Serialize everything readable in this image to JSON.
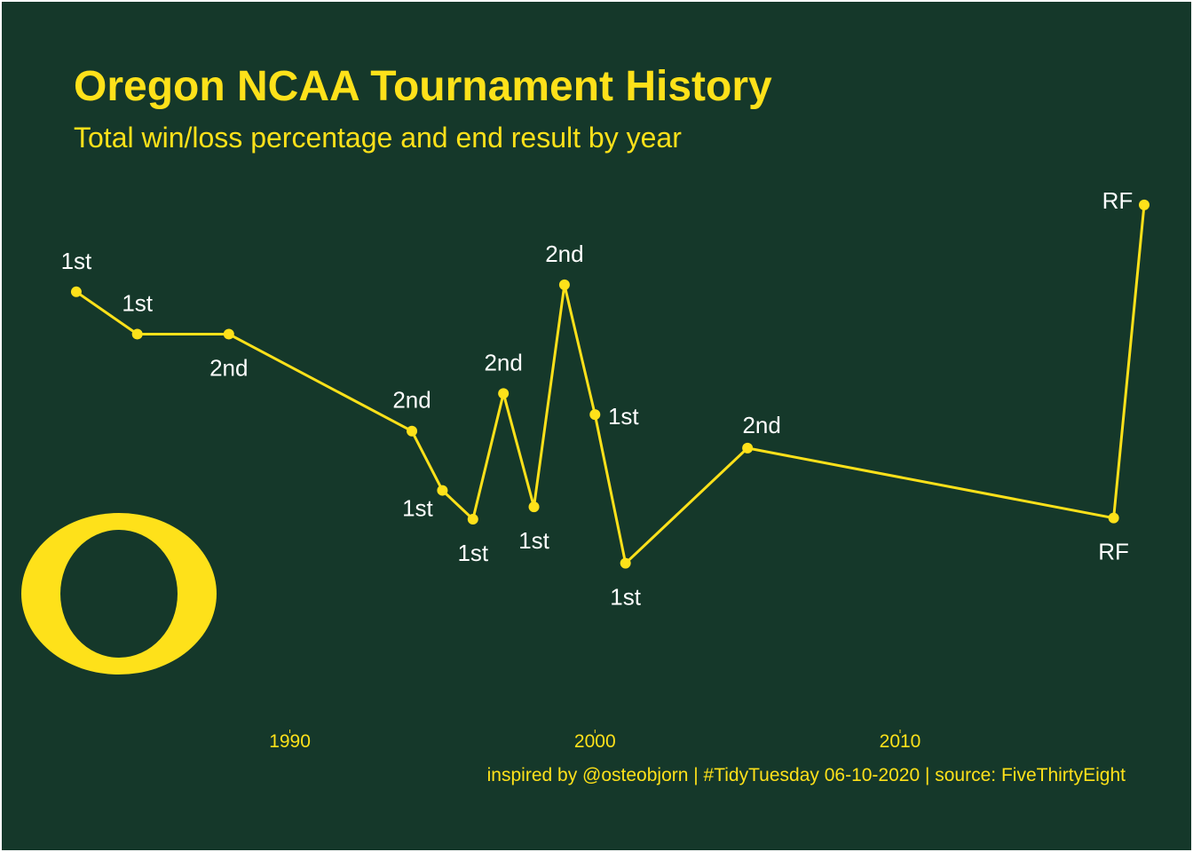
{
  "title": "Oregon NCAA Tournament History",
  "subtitle": "Total win/loss percentage and end result by year",
  "caption": "inspired by @osteobjorn | #TidyTuesday 06-10-2020 | source: FiveThirtyEight",
  "logo_icon": "oregon-o-logo",
  "colors": {
    "background": "#15382A",
    "accent": "#FEE11A",
    "label": "#FFFFFF",
    "frame": "#FFFFFF"
  },
  "chart_data": {
    "type": "line",
    "title": "Oregon NCAA Tournament History",
    "subtitle": "Total win/loss percentage and end result by year",
    "xlabel": "",
    "ylabel": "",
    "x_ticks": [
      1990,
      2000,
      2010
    ],
    "xlim": [
      1980.5,
      2019.6
    ],
    "ylim": [
      0.0,
      1.0
    ],
    "grid": false,
    "legend": "none",
    "y_axis_shown": false,
    "points": [
      {
        "x": 1983,
        "y": 0.745,
        "label": "1st"
      },
      {
        "x": 1985,
        "y": 0.673,
        "label": "1st"
      },
      {
        "x": 1988,
        "y": 0.673,
        "label": "2nd"
      },
      {
        "x": 1994,
        "y": 0.508,
        "label": "2nd"
      },
      {
        "x": 1995,
        "y": 0.407,
        "label": "1st"
      },
      {
        "x": 1996,
        "y": 0.358,
        "label": "1st"
      },
      {
        "x": 1997,
        "y": 0.572,
        "label": "2nd"
      },
      {
        "x": 1998,
        "y": 0.379,
        "label": "1st"
      },
      {
        "x": 1999,
        "y": 0.757,
        "label": "2nd"
      },
      {
        "x": 2000,
        "y": 0.536,
        "label": "1st"
      },
      {
        "x": 2001,
        "y": 0.283,
        "label": "1st"
      },
      {
        "x": 2005,
        "y": 0.479,
        "label": "2nd"
      },
      {
        "x": 2017,
        "y": 0.36,
        "label": "RF"
      },
      {
        "x": 2018,
        "y": 0.893,
        "label": "RF"
      }
    ]
  }
}
